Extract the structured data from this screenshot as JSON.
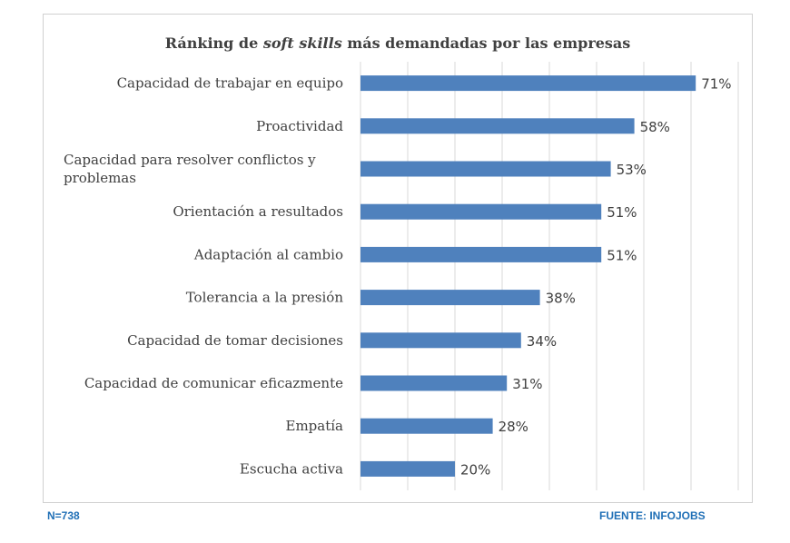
{
  "chart_data": {
    "type": "bar",
    "orientation": "horizontal",
    "title": {
      "prefix": "Ránking de ",
      "italic": "soft skills",
      "suffix": " más demandadas por las empresas"
    },
    "categories": [
      "Capacidad de trabajar en equipo",
      "Proactividad",
      "Capacidad para resolver conflictos y problemas",
      "Orientación a resultados",
      "Adaptación al cambio",
      "Tolerancia a la presión",
      "Capacidad de tomar decisiones",
      "Capacidad de comunicar eficazmente",
      "Empatía",
      "Escucha activa"
    ],
    "values": [
      71,
      58,
      53,
      51,
      51,
      38,
      34,
      31,
      28,
      20
    ],
    "value_labels": [
      "71%",
      "58%",
      "53%",
      "51%",
      "51%",
      "38%",
      "34%",
      "31%",
      "28%",
      "20%"
    ],
    "xlim": [
      0,
      80
    ],
    "x_gridlines_step": 10,
    "grid": true,
    "bar_color": "#4f81bd",
    "gridline_color": "#d9d9d9"
  },
  "footer": {
    "sample": "N=738",
    "source": "FUENTE: INFOJOBS"
  }
}
